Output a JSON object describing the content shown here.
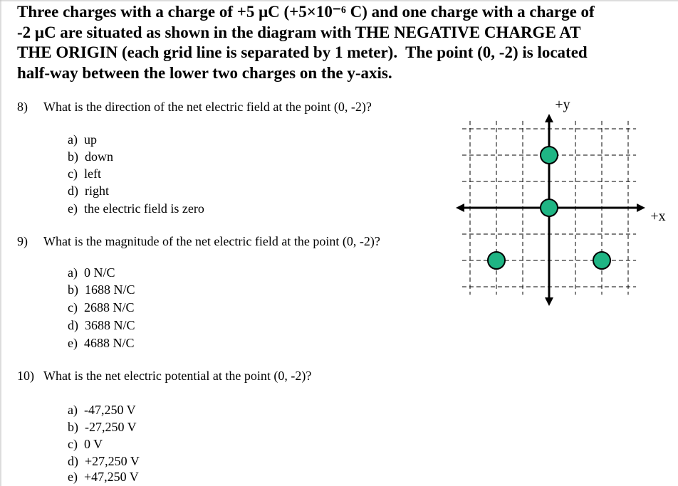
{
  "intro": {
    "lines": [
      "Three charges with a charge of +5 μC (+5×10⁻⁶ C) and one charge with a charge of",
      "-2 μC are situated as shown in the diagram with THE NEGATIVE CHARGE AT",
      "THE ORIGIN (each grid line is separated by 1 meter).  The point (0, -2) is located",
      "half-way between the lower two charges on the y-axis."
    ]
  },
  "questions": [
    {
      "number": "8)",
      "text": "What is the direction of the net electric field at the point (0, -2)?",
      "options": [
        "a)  up",
        "b)  down",
        "c)  left",
        "d)  right",
        "e)  the electric field is zero"
      ]
    },
    {
      "number": "9)",
      "text": "What is the magnitude of the net electric field at the point (0, -2)?",
      "options": [
        "a)  0 N/C",
        "b)  1688 N/C",
        "c)  2688 N/C",
        "d)  3688 N/C",
        "e)  4688 N/C"
      ]
    },
    {
      "number": "10)",
      "text": "What is the net electric potential at the point (0, -2)?",
      "options": [
        "a)  -47,250 V",
        "b)  -27,250 V",
        "c)  0 V",
        "d)  +27,250 V",
        "e)  +47,250 V"
      ]
    }
  ],
  "diagram": {
    "y_label": "+y",
    "x_label": "+x"
  }
}
